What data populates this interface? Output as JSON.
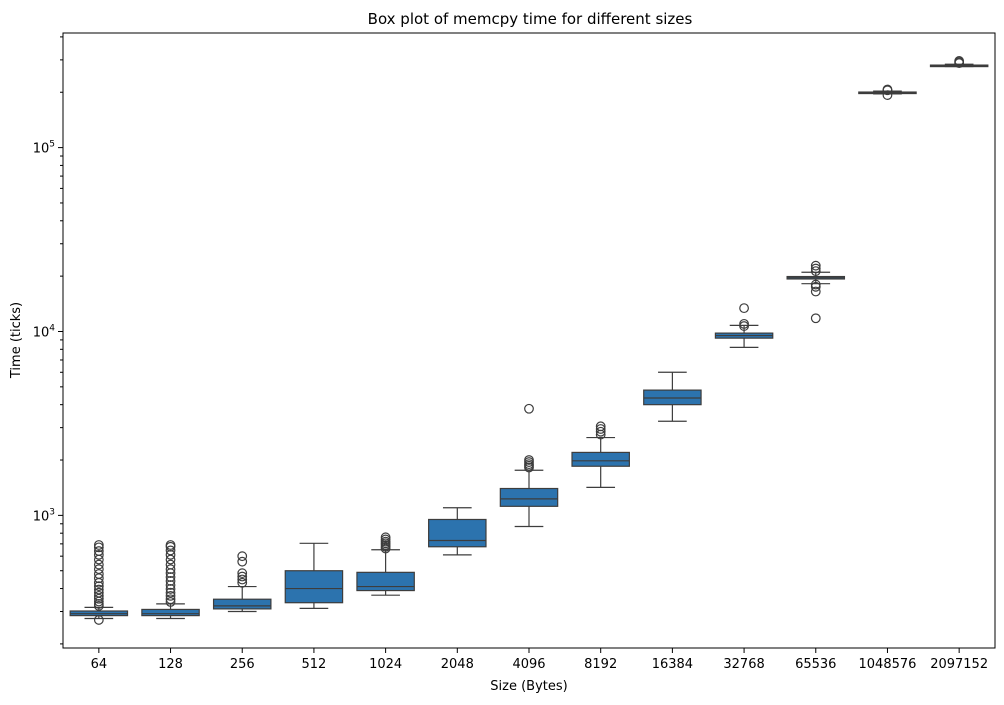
{
  "chart_data": {
    "type": "box",
    "title": "Box plot of memcpy time for different sizes",
    "xlabel": "Size (Bytes)",
    "ylabel": "Time (ticks)",
    "yscale": "log",
    "ylim": [
      190,
      420000
    ],
    "y_tick_labels": [
      {
        "value": 1000,
        "base": "10",
        "exp": "3"
      },
      {
        "value": 10000,
        "base": "10",
        "exp": "4"
      },
      {
        "value": 100000,
        "base": "10",
        "exp": "5"
      }
    ],
    "grid": false,
    "box_color": "#2c73ae",
    "categories": [
      "64",
      "128",
      "256",
      "512",
      "1024",
      "2048",
      "4096",
      "8192",
      "16384",
      "32768",
      "65536",
      "1048576",
      "2097152"
    ],
    "boxes": [
      {
        "whisker_low": 275,
        "q1": 285,
        "median": 292,
        "q3": 302,
        "whisker_high": 316,
        "outliers": [
          270,
          322,
          330,
          340,
          352,
          365,
          380,
          395,
          412,
          430,
          455,
          480,
          510,
          540,
          575,
          610,
          640,
          670,
          690
        ]
      },
      {
        "whisker_low": 275,
        "q1": 285,
        "median": 292,
        "q3": 308,
        "whisker_high": 330,
        "outliers": [
          338,
          350,
          365,
          380,
          398,
          418,
          440,
          462,
          485,
          510,
          540,
          575,
          610,
          645,
          675,
          690
        ]
      },
      {
        "whisker_low": 300,
        "q1": 310,
        "median": 322,
        "q3": 350,
        "whisker_high": 410,
        "outliers": [
          430,
          448,
          465,
          485,
          560,
          600
        ]
      },
      {
        "whisker_low": 312,
        "q1": 335,
        "median": 400,
        "q3": 500,
        "whisker_high": 705,
        "outliers": []
      },
      {
        "whisker_low": 368,
        "q1": 390,
        "median": 410,
        "q3": 490,
        "whisker_high": 650,
        "outliers": [
          660,
          675,
          690,
          705,
          720,
          740,
          760
        ]
      },
      {
        "whisker_low": 610,
        "q1": 675,
        "median": 730,
        "q3": 950,
        "whisker_high": 1100,
        "outliers": []
      },
      {
        "whisker_low": 870,
        "q1": 1120,
        "median": 1230,
        "q3": 1400,
        "whisker_high": 1760,
        "outliers": [
          1820,
          1860,
          1900,
          1950,
          2000,
          3800
        ]
      },
      {
        "whisker_low": 1420,
        "q1": 1850,
        "median": 1980,
        "q3": 2200,
        "whisker_high": 2650,
        "outliers": [
          2750,
          2850,
          2950,
          3050
        ]
      },
      {
        "whisker_low": 3250,
        "q1": 4000,
        "median": 4350,
        "q3": 4800,
        "whisker_high": 6000,
        "outliers": []
      },
      {
        "whisker_low": 8200,
        "q1": 9200,
        "median": 9500,
        "q3": 9800,
        "whisker_high": 10800,
        "outliers": [
          10700,
          11000,
          13400
        ]
      },
      {
        "whisker_low": 18200,
        "q1": 19300,
        "median": 19600,
        "q3": 19900,
        "whisker_high": 21000,
        "outliers": [
          11800,
          16500,
          17500,
          18000,
          21300,
          22000,
          22800
        ]
      },
      {
        "whisker_low": 196000,
        "q1": 198000,
        "median": 199000,
        "q3": 200500,
        "whisker_high": 203000,
        "outliers": [
          193000,
          205000,
          207000
        ]
      },
      {
        "whisker_low": 276000,
        "q1": 278000,
        "median": 279500,
        "q3": 281000,
        "whisker_high": 284000,
        "outliers": [
          288000,
          292000,
          296000
        ]
      }
    ]
  }
}
